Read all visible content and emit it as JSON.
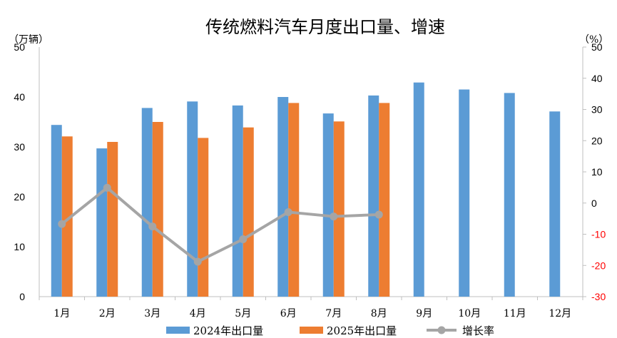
{
  "chart_data": {
    "type": "bar",
    "title": "传统燃料汽车月度出口量、增速",
    "left_unit": "（万辆）",
    "right_unit": "（%）",
    "categories": [
      "1月",
      "2月",
      "3月",
      "4月",
      "5月",
      "6月",
      "7月",
      "8月",
      "9月",
      "10月",
      "11月",
      "12月"
    ],
    "series": [
      {
        "name": "2024年出口量",
        "kind": "bar",
        "axis": "left",
        "color": "#5B9BD5",
        "values": [
          34.4,
          29.7,
          37.8,
          39.1,
          38.3,
          40.0,
          36.7,
          40.3,
          42.9,
          41.5,
          40.8,
          37.1
        ]
      },
      {
        "name": "2025年出口量",
        "kind": "bar",
        "axis": "left",
        "color": "#ED7D31",
        "values": [
          32.1,
          31.0,
          35.0,
          31.8,
          33.9,
          38.8,
          35.1,
          38.8,
          null,
          null,
          null,
          null
        ]
      },
      {
        "name": "增长率",
        "kind": "line",
        "axis": "right",
        "color": "#A5A5A5",
        "values": [
          -6.7,
          4.9,
          -7.5,
          -18.8,
          -11.6,
          -2.9,
          -4.3,
          -3.7,
          null,
          null,
          null,
          null
        ]
      }
    ],
    "ylim_left": [
      0,
      50
    ],
    "yticks_left": [
      0,
      10,
      20,
      30,
      40,
      50
    ],
    "ylim_right": [
      -30,
      50
    ],
    "yticks_right": [
      50,
      40,
      30,
      20,
      10,
      0,
      -10,
      -20,
      -30
    ],
    "negative_tick_color": "#FF0000",
    "grid": false,
    "legend_position": "bottom"
  }
}
